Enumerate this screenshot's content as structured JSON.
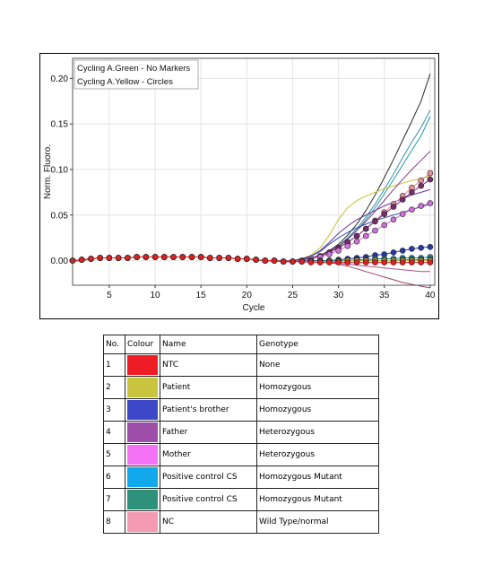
{
  "chart_data": {
    "type": "line",
    "legend": [
      "Cycling A.Green - No Markers",
      "Cycling A.Yellow - Circles"
    ],
    "legend_position": "top-left",
    "xlabel": "Cycle",
    "ylabel": "Norm. Fluoro.",
    "xlim": [
      1,
      40.5
    ],
    "ylim": [
      -0.027,
      0.222
    ],
    "xticks": [
      5,
      10,
      15,
      20,
      25,
      30,
      35,
      40
    ],
    "yticks": [
      0.0,
      0.05,
      0.1,
      0.15,
      0.2
    ],
    "ytick_labels": [
      "0.00",
      "0.05",
      "0.10",
      "0.15",
      "0.20"
    ],
    "grid": true,
    "x": [
      1,
      2,
      3,
      4,
      5,
      6,
      7,
      8,
      9,
      10,
      11,
      12,
      13,
      14,
      15,
      16,
      17,
      18,
      19,
      20,
      21,
      22,
      23,
      24,
      25,
      26,
      27,
      28,
      29,
      30,
      31,
      32,
      33,
      34,
      35,
      36,
      37,
      38,
      39,
      40
    ],
    "green_series": [
      {
        "color": "#2b2b2b",
        "values": [
          0.0,
          0.0,
          0.002,
          0.003,
          0.003,
          0.003,
          0.003,
          0.004,
          0.004,
          0.004,
          0.004,
          0.004,
          0.004,
          0.004,
          0.004,
          0.003,
          0.003,
          0.003,
          0.002,
          0.002,
          0.001,
          0.0,
          0.0,
          0.0,
          0.0,
          0.001,
          0.003,
          0.006,
          0.011,
          0.018,
          0.028,
          0.04,
          0.055,
          0.072,
          0.091,
          0.111,
          0.132,
          0.153,
          0.175,
          0.205
        ]
      },
      {
        "color": "#3a8fb0",
        "values": [
          0.0,
          0.0,
          0.002,
          0.003,
          0.003,
          0.003,
          0.003,
          0.004,
          0.004,
          0.004,
          0.004,
          0.004,
          0.004,
          0.004,
          0.004,
          0.003,
          0.003,
          0.003,
          0.002,
          0.002,
          0.001,
          0.0,
          0.0,
          0.0,
          0.0,
          0.001,
          0.003,
          0.006,
          0.01,
          0.016,
          0.025,
          0.035,
          0.048,
          0.062,
          0.078,
          0.095,
          0.113,
          0.13,
          0.146,
          0.165
        ]
      },
      {
        "color": "#1e9e9e",
        "values": [
          0.0,
          0.0,
          0.002,
          0.003,
          0.003,
          0.003,
          0.003,
          0.004,
          0.004,
          0.004,
          0.004,
          0.004,
          0.004,
          0.004,
          0.004,
          0.003,
          0.003,
          0.003,
          0.002,
          0.002,
          0.001,
          0.0,
          0.0,
          0.0,
          0.0,
          0.001,
          0.003,
          0.005,
          0.009,
          0.015,
          0.023,
          0.033,
          0.045,
          0.058,
          0.073,
          0.089,
          0.105,
          0.121,
          0.137,
          0.158
        ]
      },
      {
        "color": "#c8c02a",
        "values": [
          0.0,
          0.0,
          0.002,
          0.003,
          0.003,
          0.003,
          0.003,
          0.004,
          0.004,
          0.004,
          0.004,
          0.004,
          0.004,
          0.004,
          0.004,
          0.003,
          0.003,
          0.003,
          0.002,
          0.002,
          0.001,
          0.0,
          0.0,
          0.0,
          0.0,
          0.002,
          0.006,
          0.014,
          0.028,
          0.045,
          0.058,
          0.066,
          0.071,
          0.075,
          0.079,
          0.082,
          0.085,
          0.088,
          0.09,
          0.093
        ]
      },
      {
        "color": "#8a3c8c",
        "values": [
          0.0,
          0.0,
          0.002,
          0.003,
          0.003,
          0.003,
          0.003,
          0.004,
          0.004,
          0.004,
          0.004,
          0.004,
          0.004,
          0.004,
          0.004,
          0.003,
          0.003,
          0.003,
          0.002,
          0.002,
          0.001,
          0.0,
          0.0,
          0.0,
          0.0,
          0.001,
          0.003,
          0.006,
          0.01,
          0.016,
          0.024,
          0.033,
          0.043,
          0.054,
          0.066,
          0.078,
          0.089,
          0.1,
          0.11,
          0.12
        ]
      },
      {
        "color": "#6b2fa0",
        "values": [
          0.0,
          0.0,
          0.002,
          0.003,
          0.003,
          0.003,
          0.003,
          0.004,
          0.004,
          0.004,
          0.004,
          0.004,
          0.004,
          0.004,
          0.004,
          0.003,
          0.003,
          0.003,
          0.002,
          0.002,
          0.001,
          0.0,
          0.0,
          0.0,
          0.0,
          0.002,
          0.005,
          0.011,
          0.02,
          0.03,
          0.038,
          0.045,
          0.05,
          0.055,
          0.06,
          0.064,
          0.068,
          0.072,
          0.075,
          0.078
        ]
      },
      {
        "color": "#2e4fa8",
        "values": [
          0.0,
          0.0,
          0.002,
          0.003,
          0.003,
          0.003,
          0.003,
          0.004,
          0.004,
          0.004,
          0.004,
          0.004,
          0.004,
          0.004,
          0.004,
          0.003,
          0.003,
          0.003,
          0.002,
          0.002,
          0.001,
          0.0,
          0.0,
          0.0,
          0.0,
          0.001,
          0.005,
          0.01,
          0.018,
          0.025,
          0.031,
          0.036,
          0.04,
          0.044,
          0.047,
          0.05,
          0.053,
          0.056,
          0.059,
          0.062
        ]
      },
      {
        "color": "#a0406a",
        "values": [
          0.0,
          0.0,
          0.002,
          0.003,
          0.003,
          0.003,
          0.003,
          0.004,
          0.004,
          0.004,
          0.004,
          0.004,
          0.004,
          0.004,
          0.004,
          0.003,
          0.003,
          0.003,
          0.002,
          0.002,
          0.001,
          0.0,
          0.0,
          0.0,
          0.0,
          0.0,
          0.0,
          -0.001,
          -0.002,
          -0.004,
          -0.006,
          -0.009,
          -0.012,
          -0.015,
          -0.018,
          -0.021,
          -0.024,
          -0.026,
          -0.028,
          -0.03
        ]
      },
      {
        "color": "#b0508a",
        "values": [
          0.0,
          0.0,
          0.002,
          0.003,
          0.003,
          0.003,
          0.003,
          0.004,
          0.004,
          0.004,
          0.004,
          0.004,
          0.004,
          0.004,
          0.004,
          0.003,
          0.003,
          0.003,
          0.002,
          0.002,
          0.001,
          0.0,
          0.0,
          0.0,
          0.0,
          0.0,
          0.0,
          -0.001,
          -0.002,
          -0.003,
          -0.004,
          -0.005,
          -0.006,
          -0.007,
          -0.008,
          -0.009,
          -0.01,
          -0.011,
          -0.012,
          -0.012
        ]
      }
    ],
    "yellow_series": [
      {
        "name": "NC",
        "color": "#e8909a",
        "values": [
          0.0,
          0.001,
          0.002,
          0.003,
          0.003,
          0.003,
          0.003,
          0.004,
          0.004,
          0.004,
          0.004,
          0.004,
          0.004,
          0.004,
          0.004,
          0.003,
          0.003,
          0.003,
          0.002,
          0.002,
          0.001,
          0.0,
          0.0,
          -0.001,
          -0.001,
          0.0,
          0.002,
          0.005,
          0.009,
          0.014,
          0.02,
          0.027,
          0.035,
          0.044,
          0.053,
          0.062,
          0.071,
          0.08,
          0.088,
          0.096
        ]
      },
      {
        "name": "Father",
        "color": "#7a2a6e",
        "values": [
          0.0,
          0.001,
          0.002,
          0.003,
          0.003,
          0.003,
          0.003,
          0.004,
          0.004,
          0.004,
          0.004,
          0.004,
          0.004,
          0.004,
          0.004,
          0.003,
          0.003,
          0.003,
          0.002,
          0.002,
          0.001,
          0.0,
          0.0,
          -0.001,
          -0.001,
          0.0,
          0.002,
          0.005,
          0.009,
          0.014,
          0.02,
          0.027,
          0.035,
          0.043,
          0.051,
          0.059,
          0.067,
          0.075,
          0.082,
          0.089
        ]
      },
      {
        "name": "Mother",
        "color": "#d070d8",
        "values": [
          0.0,
          0.001,
          0.002,
          0.003,
          0.003,
          0.003,
          0.003,
          0.004,
          0.004,
          0.004,
          0.004,
          0.004,
          0.004,
          0.004,
          0.004,
          0.003,
          0.003,
          0.003,
          0.002,
          0.002,
          0.001,
          0.0,
          0.0,
          -0.001,
          -0.001,
          0.0,
          0.002,
          0.004,
          0.007,
          0.011,
          0.016,
          0.021,
          0.027,
          0.033,
          0.039,
          0.045,
          0.051,
          0.056,
          0.06,
          0.063
        ]
      },
      {
        "name": "Patient's brother",
        "color": "#2438a8",
        "values": [
          0.0,
          0.001,
          0.002,
          0.003,
          0.003,
          0.003,
          0.003,
          0.004,
          0.004,
          0.004,
          0.004,
          0.004,
          0.004,
          0.004,
          0.004,
          0.003,
          0.003,
          0.003,
          0.002,
          0.002,
          0.001,
          0.0,
          0.0,
          -0.001,
          -0.001,
          -0.001,
          0.0,
          0.0,
          0.0,
          0.001,
          0.002,
          0.003,
          0.004,
          0.006,
          0.007,
          0.009,
          0.011,
          0.013,
          0.014,
          0.015
        ]
      },
      {
        "name": "Positive control CS",
        "color": "#1a8a9a",
        "values": [
          0.0,
          0.001,
          0.002,
          0.003,
          0.003,
          0.003,
          0.003,
          0.004,
          0.004,
          0.004,
          0.004,
          0.004,
          0.004,
          0.004,
          0.004,
          0.003,
          0.003,
          0.003,
          0.002,
          0.002,
          0.001,
          0.0,
          0.0,
          -0.001,
          -0.001,
          -0.001,
          -0.001,
          0.0,
          0.0,
          0.0,
          0.0,
          0.001,
          0.001,
          0.002,
          0.002,
          0.002,
          0.003,
          0.003,
          0.003,
          0.004
        ]
      },
      {
        "name": "Positive control CS",
        "color": "#2e8a6a",
        "values": [
          0.0,
          0.001,
          0.002,
          0.003,
          0.003,
          0.003,
          0.003,
          0.004,
          0.004,
          0.004,
          0.004,
          0.004,
          0.004,
          0.004,
          0.004,
          0.003,
          0.003,
          0.003,
          0.002,
          0.002,
          0.001,
          0.0,
          0.0,
          -0.001,
          -0.001,
          -0.001,
          -0.001,
          -0.001,
          -0.001,
          0.0,
          0.0,
          0.0,
          0.0,
          0.0,
          0.0,
          0.0,
          0.001,
          0.001,
          0.001,
          0.001
        ]
      },
      {
        "name": "Patient",
        "color": "#c4b83a",
        "values": [
          0.0,
          0.001,
          0.002,
          0.003,
          0.003,
          0.003,
          0.003,
          0.004,
          0.004,
          0.004,
          0.004,
          0.004,
          0.004,
          0.004,
          0.004,
          0.003,
          0.003,
          0.003,
          0.002,
          0.002,
          0.001,
          0.0,
          0.0,
          -0.001,
          -0.001,
          -0.001,
          -0.001,
          -0.001,
          -0.001,
          -0.001,
          0.0,
          0.0,
          0.0,
          0.0,
          0.0,
          0.0,
          0.0,
          0.0,
          0.0,
          0.0
        ]
      },
      {
        "name": "NTC",
        "color": "#e02020",
        "values": [
          0.0,
          0.001,
          0.002,
          0.003,
          0.003,
          0.003,
          0.003,
          0.004,
          0.004,
          0.004,
          0.004,
          0.004,
          0.004,
          0.004,
          0.004,
          0.003,
          0.003,
          0.003,
          0.002,
          0.002,
          0.001,
          0.0,
          0.0,
          -0.001,
          -0.001,
          -0.001,
          -0.002,
          -0.002,
          -0.002,
          -0.002,
          -0.002,
          -0.002,
          -0.002,
          -0.002,
          -0.002,
          -0.002,
          -0.002,
          -0.002,
          -0.002,
          -0.002
        ]
      }
    ]
  },
  "legend_table": {
    "headers": [
      "No.",
      "Colour",
      "Name",
      "Genotype"
    ],
    "rows": [
      {
        "no": "1",
        "color": "#ee1c24",
        "name": "NTC",
        "genotype": "None"
      },
      {
        "no": "2",
        "color": "#c9c43e",
        "name": "Patient",
        "genotype": "Homozygous"
      },
      {
        "no": "3",
        "color": "#3c48c8",
        "name": "Patient's brother",
        "genotype": "Homozygous"
      },
      {
        "no": "4",
        "color": "#9c4ea8",
        "name": "Father",
        "genotype": "Heterozygous"
      },
      {
        "no": "5",
        "color": "#f472f6",
        "name": "Mother",
        "genotype": "Heterozygous"
      },
      {
        "no": "6",
        "color": "#12a8ec",
        "name": "Positive control CS",
        "genotype": "Homozygous Mutant"
      },
      {
        "no": "7",
        "color": "#2e917c",
        "name": "Positive control CS",
        "genotype": "Homozygous Mutant"
      },
      {
        "no": "8",
        "color": "#f49ab2",
        "name": "NC",
        "genotype": "Wild Type/normal"
      }
    ]
  }
}
